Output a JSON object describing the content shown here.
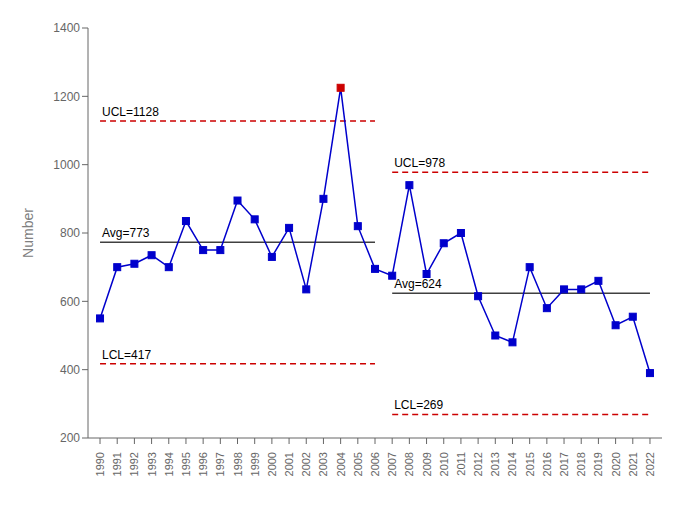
{
  "chart_data": {
    "type": "line",
    "x": [
      1990,
      1991,
      1992,
      1993,
      1994,
      1995,
      1996,
      1997,
      1998,
      1999,
      2000,
      2001,
      2002,
      2003,
      2004,
      2005,
      2006,
      2007,
      2008,
      2009,
      2010,
      2011,
      2012,
      2013,
      2014,
      2015,
      2016,
      2017,
      2018,
      2019,
      2020,
      2021,
      2022
    ],
    "values": [
      550,
      700,
      710,
      735,
      700,
      835,
      750,
      750,
      895,
      840,
      730,
      815,
      635,
      900,
      1225,
      820,
      695,
      675,
      940,
      680,
      770,
      800,
      615,
      500,
      480,
      700,
      580,
      635,
      635,
      660,
      530,
      555,
      390
    ],
    "color": "#0000CC",
    "colors": [
      "#0000CC",
      "#0000CC",
      "#0000CC",
      "#0000CC",
      "#0000CC",
      "#0000CC",
      "#0000CC",
      "#0000CC",
      "#0000CC",
      "#0000CC",
      "#0000CC",
      "#0000CC",
      "#0000CC",
      "#0000CC",
      "#CC0000",
      "#0000CC",
      "#0000CC",
      "#0000CC",
      "#0000CC",
      "#0000CC",
      "#0000CC",
      "#0000CC",
      "#0000CC",
      "#0000CC",
      "#0000CC",
      "#0000CC",
      "#0000CC",
      "#0000CC",
      "#0000CC",
      "#0000CC",
      "#0000CC",
      "#0000CC",
      "#0000CC"
    ],
    "marker": "square",
    "ylabel": "Number",
    "xlim": [
      1989.3,
      2022.7
    ],
    "xticks": [
      1990,
      1991,
      1992,
      1993,
      1994,
      1995,
      1996,
      1997,
      1998,
      1999,
      2000,
      2001,
      2002,
      2003,
      2004,
      2005,
      2006,
      2007,
      2008,
      2009,
      2010,
      2011,
      2012,
      2013,
      2014,
      2015,
      2016,
      2017,
      2018,
      2019,
      2020,
      2021,
      2022
    ],
    "ylim": [
      200,
      1400
    ],
    "yticks": [
      200,
      400,
      600,
      800,
      1000,
      1200,
      1400
    ],
    "grid": false,
    "reference_lines": [
      {
        "x": [
          1990,
          2006
        ],
        "y": 1128,
        "label": "UCL=1128",
        "color": "#CC0000",
        "line_style": "dashed"
      },
      {
        "x": [
          1990,
          2006
        ],
        "y": 417,
        "label": "LCL=417",
        "color": "#CC0000",
        "line_style": "dashed"
      },
      {
        "x": [
          1990,
          2006
        ],
        "y": 773,
        "label": "Avg=773",
        "color": "#404040",
        "line_style": "solid"
      },
      {
        "x": [
          2007,
          2022
        ],
        "y": 978,
        "label": "UCL=978",
        "color": "#CC0000",
        "line_style": "dashed"
      },
      {
        "x": [
          2007,
          2022
        ],
        "y": 269,
        "label": "LCL=269",
        "color": "#CC0000",
        "line_style": "dashed"
      },
      {
        "x": [
          2007,
          2022
        ],
        "y": 624,
        "label": "Avg=624",
        "color": "#404040",
        "line_style": "solid"
      }
    ]
  }
}
